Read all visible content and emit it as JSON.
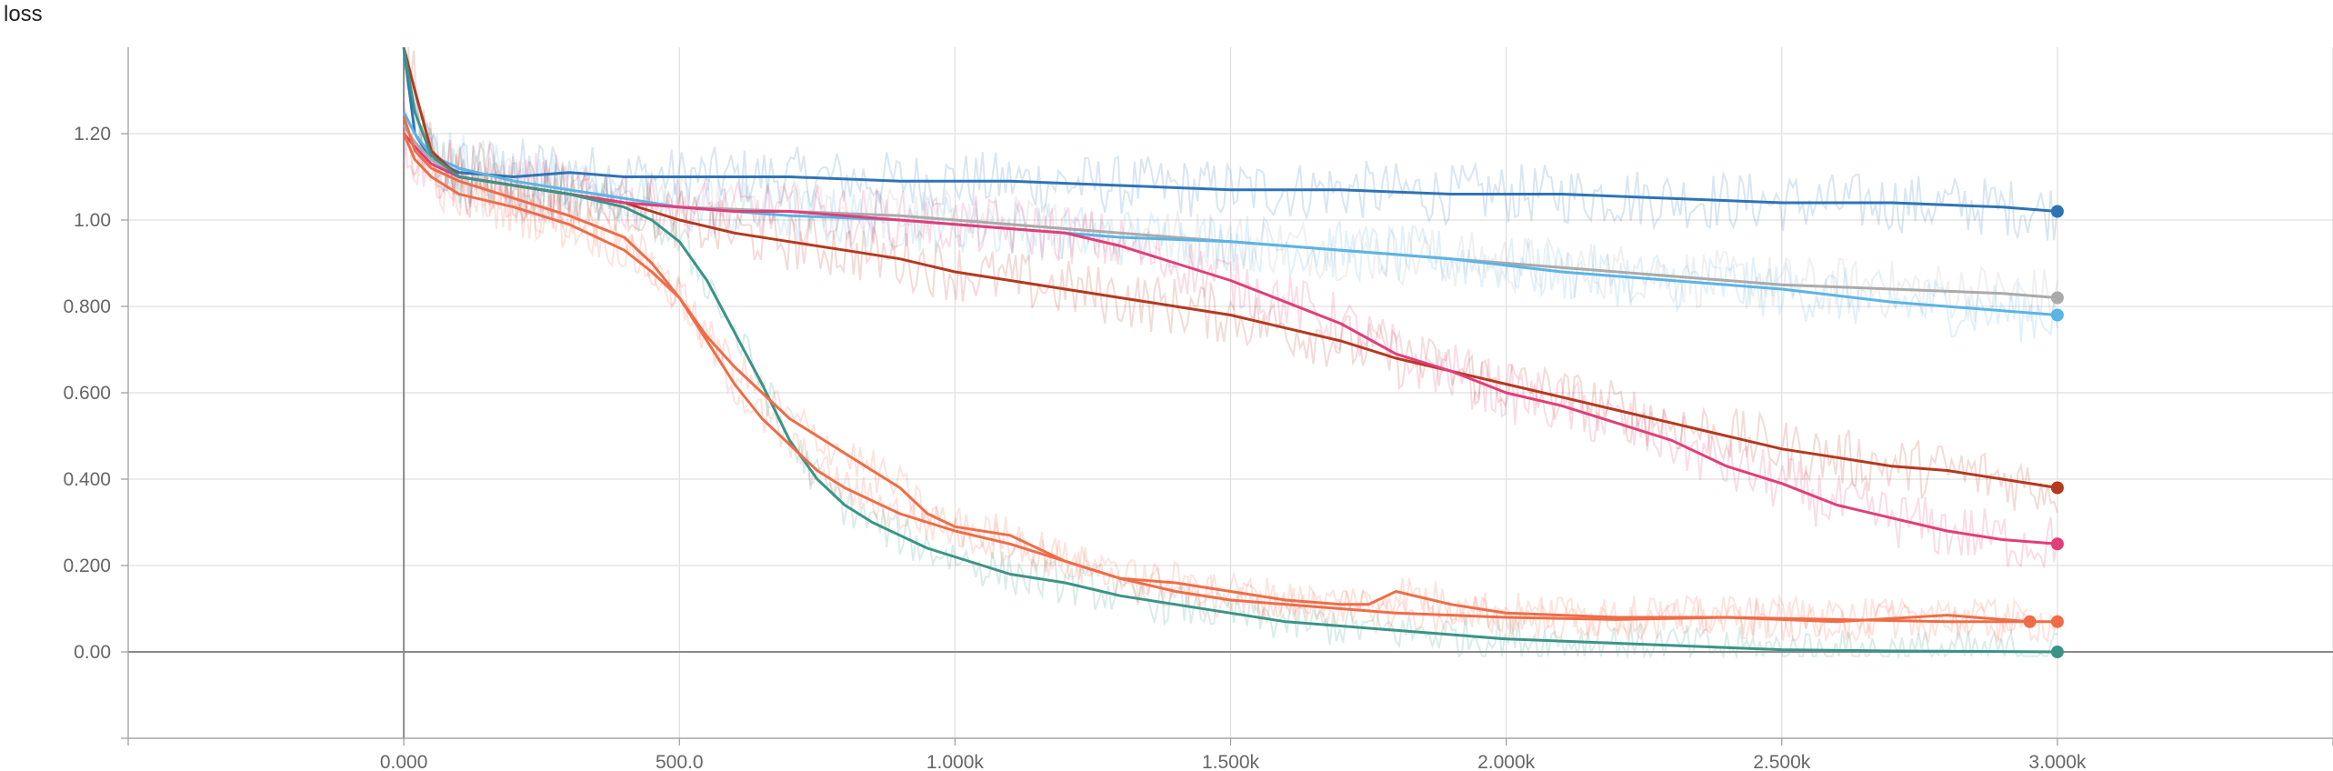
{
  "chart_data": {
    "type": "line",
    "title": "loss",
    "xlabel": "",
    "ylabel": "",
    "xlim": [
      -500,
      3500
    ],
    "ylim": [
      -0.2,
      1.4
    ],
    "grid": true,
    "x_ticks": [
      {
        "value": 0,
        "label": "0.000"
      },
      {
        "value": 500,
        "label": "500.0"
      },
      {
        "value": 1000,
        "label": "1.000k"
      },
      {
        "value": 1500,
        "label": "1.500k"
      },
      {
        "value": 2000,
        "label": "2.000k"
      },
      {
        "value": 2500,
        "label": "2.500k"
      },
      {
        "value": 3000,
        "label": "3.000k"
      }
    ],
    "y_ticks": [
      {
        "value": 0,
        "label": "0.00"
      },
      {
        "value": 0.2,
        "label": "0.200"
      },
      {
        "value": 0.4,
        "label": "0.400"
      },
      {
        "value": 0.6,
        "label": "0.600"
      },
      {
        "value": 0.8,
        "label": "0.800"
      },
      {
        "value": 1.0,
        "label": "1.00"
      },
      {
        "value": 1.2,
        "label": "1.20"
      }
    ],
    "series": [
      {
        "color": "#2e74b5",
        "x": [
          0,
          20,
          50,
          100,
          200,
          300,
          400,
          500,
          700,
          900,
          1100,
          1300,
          1500,
          1700,
          1900,
          2100,
          2300,
          2500,
          2700,
          2900,
          3000
        ],
        "y": [
          1.4,
          1.2,
          1.14,
          1.11,
          1.1,
          1.11,
          1.1,
          1.1,
          1.1,
          1.09,
          1.09,
          1.08,
          1.07,
          1.07,
          1.06,
          1.06,
          1.05,
          1.04,
          1.04,
          1.03,
          1.02
        ]
      },
      {
        "color": "#aaaaaa",
        "x": [
          0,
          20,
          50,
          100,
          200,
          300,
          400,
          500,
          700,
          900,
          1100,
          1300,
          1500,
          1700,
          1900,
          2100,
          2300,
          2500,
          2700,
          2900,
          3000
        ],
        "y": [
          1.22,
          1.18,
          1.14,
          1.1,
          1.08,
          1.06,
          1.04,
          1.03,
          1.02,
          1.01,
          0.99,
          0.97,
          0.95,
          0.93,
          0.91,
          0.89,
          0.87,
          0.85,
          0.84,
          0.83,
          0.82
        ]
      },
      {
        "color": "#5ab4e6",
        "x": [
          0,
          20,
          50,
          100,
          200,
          300,
          400,
          500,
          700,
          900,
          1100,
          1300,
          1500,
          1700,
          1900,
          2100,
          2300,
          2500,
          2700,
          2900,
          3000
        ],
        "y": [
          1.25,
          1.2,
          1.15,
          1.12,
          1.09,
          1.07,
          1.05,
          1.03,
          1.01,
          1.0,
          0.98,
          0.96,
          0.95,
          0.93,
          0.91,
          0.88,
          0.86,
          0.84,
          0.81,
          0.79,
          0.78
        ]
      },
      {
        "color": "#b5381f",
        "x": [
          0,
          20,
          50,
          100,
          200,
          300,
          400,
          500,
          600,
          700,
          800,
          900,
          1000,
          1100,
          1200,
          1300,
          1400,
          1500,
          1600,
          1700,
          1800,
          1900,
          2000,
          2100,
          2200,
          2300,
          2400,
          2500,
          2600,
          2700,
          2800,
          2900,
          3000
        ],
        "y": [
          1.4,
          1.3,
          1.16,
          1.1,
          1.08,
          1.06,
          1.04,
          1.0,
          0.97,
          0.95,
          0.93,
          0.91,
          0.88,
          0.86,
          0.84,
          0.82,
          0.8,
          0.78,
          0.75,
          0.72,
          0.68,
          0.65,
          0.62,
          0.59,
          0.56,
          0.53,
          0.5,
          0.47,
          0.45,
          0.43,
          0.42,
          0.4,
          0.38
        ]
      },
      {
        "color": "#e23d7a",
        "x": [
          0,
          20,
          50,
          100,
          200,
          300,
          400,
          500,
          600,
          700,
          800,
          900,
          1000,
          1100,
          1200,
          1300,
          1400,
          1500,
          1600,
          1700,
          1800,
          1900,
          2000,
          2100,
          2200,
          2300,
          2400,
          2500,
          2600,
          2700,
          2800,
          2900,
          3000
        ],
        "y": [
          1.2,
          1.17,
          1.13,
          1.1,
          1.08,
          1.06,
          1.04,
          1.03,
          1.02,
          1.02,
          1.01,
          1.0,
          0.99,
          0.98,
          0.97,
          0.94,
          0.9,
          0.86,
          0.81,
          0.76,
          0.69,
          0.65,
          0.6,
          0.57,
          0.53,
          0.49,
          0.43,
          0.39,
          0.34,
          0.31,
          0.28,
          0.26,
          0.25
        ]
      },
      {
        "color": "#3a9485",
        "x": [
          0,
          20,
          50,
          100,
          200,
          300,
          400,
          450,
          500,
          550,
          600,
          650,
          700,
          750,
          800,
          850,
          900,
          950,
          1000,
          1100,
          1200,
          1300,
          1400,
          1500,
          1600,
          1700,
          1800,
          1900,
          2000,
          2100,
          2200,
          2300,
          2400,
          2500,
          2700,
          3000
        ],
        "y": [
          1.4,
          1.25,
          1.15,
          1.1,
          1.08,
          1.06,
          1.03,
          1.0,
          0.95,
          0.86,
          0.74,
          0.62,
          0.49,
          0.4,
          0.34,
          0.3,
          0.27,
          0.24,
          0.22,
          0.18,
          0.16,
          0.13,
          0.11,
          0.09,
          0.07,
          0.06,
          0.05,
          0.04,
          0.03,
          0.025,
          0.02,
          0.015,
          0.01,
          0.005,
          0.002,
          0.0
        ]
      },
      {
        "color": "#ef6c47",
        "x": [
          0,
          20,
          50,
          100,
          200,
          300,
          400,
          450,
          500,
          550,
          600,
          650,
          700,
          750,
          800,
          850,
          900,
          950,
          1000,
          1100,
          1200,
          1300,
          1400,
          1500,
          1600,
          1700,
          1800,
          1900,
          2000,
          2200,
          2400,
          2600,
          2800,
          3000
        ],
        "y": [
          1.2,
          1.14,
          1.1,
          1.06,
          1.03,
          0.99,
          0.93,
          0.88,
          0.82,
          0.72,
          0.62,
          0.54,
          0.48,
          0.42,
          0.38,
          0.35,
          0.32,
          0.3,
          0.28,
          0.25,
          0.21,
          0.17,
          0.14,
          0.12,
          0.11,
          0.1,
          0.09,
          0.085,
          0.08,
          0.075,
          0.08,
          0.075,
          0.07,
          0.07
        ]
      },
      {
        "color": "#ef6c47",
        "x": [
          0,
          20,
          50,
          100,
          200,
          300,
          400,
          450,
          500,
          550,
          600,
          650,
          700,
          750,
          800,
          850,
          900,
          950,
          1000,
          1100,
          1200,
          1300,
          1400,
          1500,
          1600,
          1700,
          1750,
          1800,
          1900,
          2000,
          2200,
          2400,
          2600,
          2800,
          2950
        ],
        "y": [
          1.24,
          1.16,
          1.12,
          1.09,
          1.05,
          1.01,
          0.96,
          0.9,
          0.82,
          0.73,
          0.66,
          0.6,
          0.54,
          0.5,
          0.46,
          0.42,
          0.38,
          0.32,
          0.29,
          0.27,
          0.21,
          0.17,
          0.16,
          0.14,
          0.12,
          0.11,
          0.11,
          0.14,
          0.11,
          0.09,
          0.08,
          0.08,
          0.07,
          0.085,
          0.07
        ]
      }
    ]
  }
}
